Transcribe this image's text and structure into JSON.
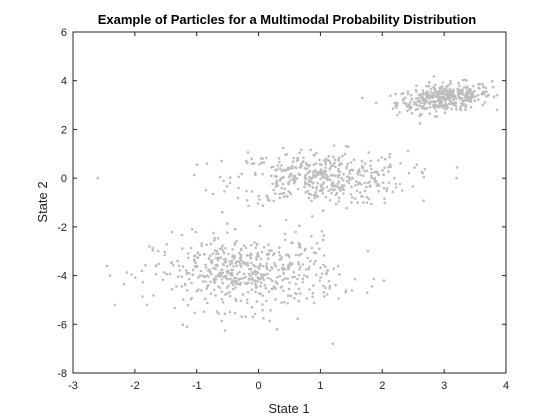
{
  "chart_data": {
    "type": "scatter",
    "title": "Example of Particles for a Multimodal Probability Distribution",
    "xlabel": "State 1",
    "ylabel": "State 2",
    "xlim": [
      -3,
      4
    ],
    "ylim": [
      -8,
      6
    ],
    "xticks": [
      "-3",
      "-2",
      "-1",
      "0",
      "1",
      "2",
      "3",
      "4"
    ],
    "yticks": [
      "-8",
      "-6",
      "-4",
      "-2",
      "0",
      "2",
      "4",
      "6"
    ],
    "grid": false,
    "marker_color": "#bdbdbd",
    "clusters": [
      {
        "center": [
          3.0,
          3.3
        ],
        "spread": [
          0.38,
          0.28
        ],
        "tilt": 0.25,
        "count": 380
      },
      {
        "center": [
          1.0,
          0.0
        ],
        "spread": [
          0.7,
          0.55
        ],
        "tilt": 0.0,
        "count": 420
      },
      {
        "center": [
          -0.2,
          -3.9
        ],
        "spread": [
          0.75,
          0.75
        ],
        "tilt": 0.0,
        "count": 540
      }
    ],
    "outliers": [
      [
        -2.6,
        0.0
      ],
      [
        -2.4,
        -4.0
      ],
      [
        -0.6,
        0.7
      ],
      [
        -0.2,
        0.7
      ],
      [
        3.2,
        0.0
      ],
      [
        0.3,
        -6.2
      ],
      [
        1.2,
        -6.8
      ]
    ]
  }
}
